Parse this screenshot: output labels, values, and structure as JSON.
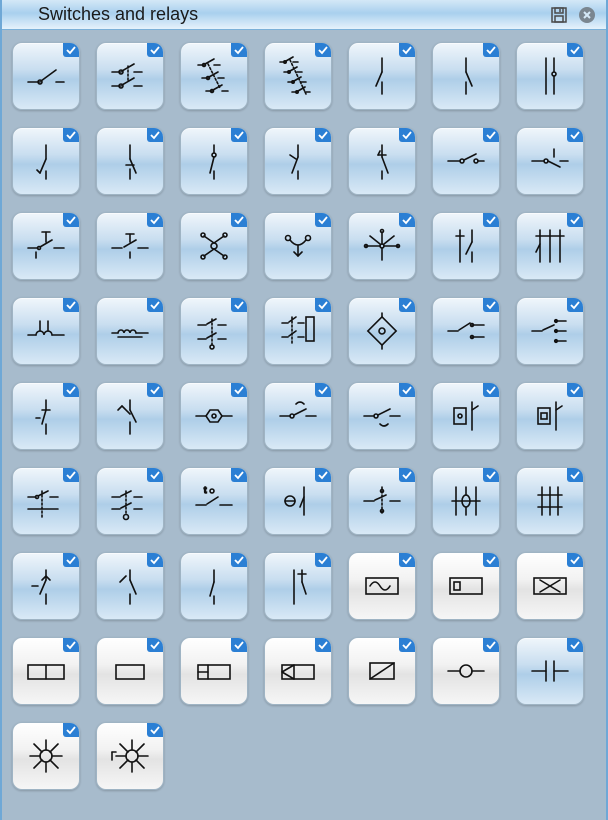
{
  "panel": {
    "title": "Switches and relays"
  },
  "tiles": [
    {
      "name": "spst-switch",
      "style": "blue",
      "corner": true,
      "glyph": "spst"
    },
    {
      "name": "dpst-switch",
      "style": "blue",
      "corner": true,
      "glyph": "dpst"
    },
    {
      "name": "tpst-switch",
      "style": "blue",
      "corner": true,
      "glyph": "tpst"
    },
    {
      "name": "qpst-switch",
      "style": "blue",
      "corner": true,
      "glyph": "qpst"
    },
    {
      "name": "make-contact-1",
      "style": "blue",
      "corner": true,
      "glyph": "make1"
    },
    {
      "name": "make-contact-2",
      "style": "blue",
      "corner": true,
      "glyph": "make2"
    },
    {
      "name": "break-contact",
      "style": "blue",
      "corner": true,
      "glyph": "break1"
    },
    {
      "name": "contact-no",
      "style": "blue",
      "corner": true,
      "glyph": "cno"
    },
    {
      "name": "contact-nc",
      "style": "blue",
      "corner": true,
      "glyph": "cnc"
    },
    {
      "name": "contact-co",
      "style": "blue",
      "corner": true,
      "glyph": "cco"
    },
    {
      "name": "contact-transfer",
      "style": "blue",
      "corner": true,
      "glyph": "ctrans"
    },
    {
      "name": "contact-early",
      "style": "blue",
      "corner": true,
      "glyph": "cearly"
    },
    {
      "name": "switch-horizontal-1",
      "style": "blue",
      "corner": true,
      "glyph": "hsw1"
    },
    {
      "name": "switch-horizontal-2",
      "style": "blue",
      "corner": true,
      "glyph": "hsw2"
    },
    {
      "name": "pushbutton-1",
      "style": "blue",
      "corner": true,
      "glyph": "pb1"
    },
    {
      "name": "pushbutton-2",
      "style": "blue",
      "corner": true,
      "glyph": "pb2"
    },
    {
      "name": "rotary-switch",
      "style": "blue",
      "corner": true,
      "glyph": "rotary"
    },
    {
      "name": "changeover-switch",
      "style": "blue",
      "corner": true,
      "glyph": "changeover"
    },
    {
      "name": "multiposition-switch",
      "style": "blue",
      "corner": true,
      "glyph": "multipos"
    },
    {
      "name": "limit-switch",
      "style": "blue",
      "corner": true,
      "glyph": "limit"
    },
    {
      "name": "interlock-switch",
      "style": "blue",
      "corner": true,
      "glyph": "interlock"
    },
    {
      "name": "relay-coil-1",
      "style": "blue",
      "corner": true,
      "glyph": "coil1"
    },
    {
      "name": "relay-coil-2",
      "style": "blue",
      "corner": true,
      "glyph": "coil2"
    },
    {
      "name": "relay-contact-set",
      "style": "blue",
      "corner": true,
      "glyph": "rcset"
    },
    {
      "name": "relay-dpdt",
      "style": "blue",
      "corner": true,
      "glyph": "dpdt"
    },
    {
      "name": "relay-polarized",
      "style": "blue",
      "corner": true,
      "glyph": "polarized"
    },
    {
      "name": "switch-2way-h",
      "style": "blue",
      "corner": true,
      "glyph": "sw2h"
    },
    {
      "name": "switch-3way-h",
      "style": "blue",
      "corner": true,
      "glyph": "sw3h"
    },
    {
      "name": "thermal-switch-1",
      "style": "blue",
      "corner": true,
      "glyph": "therm1"
    },
    {
      "name": "thermal-switch-2",
      "style": "blue",
      "corner": true,
      "glyph": "therm2"
    },
    {
      "name": "delay-switch-1",
      "style": "blue",
      "corner": true,
      "glyph": "delay1"
    },
    {
      "name": "delay-switch-2",
      "style": "blue",
      "corner": true,
      "glyph": "delay2"
    },
    {
      "name": "delay-switch-3",
      "style": "blue",
      "corner": true,
      "glyph": "delay3"
    },
    {
      "name": "relay-box-1",
      "style": "blue",
      "corner": true,
      "glyph": "rbox1"
    },
    {
      "name": "relay-box-2",
      "style": "blue",
      "corner": true,
      "glyph": "rbox2"
    },
    {
      "name": "switch-assembly-1",
      "style": "blue",
      "corner": true,
      "glyph": "asm1"
    },
    {
      "name": "switch-assembly-2",
      "style": "blue",
      "corner": true,
      "glyph": "asm2"
    },
    {
      "name": "time-delay-switch",
      "style": "blue",
      "corner": true,
      "glyph": "tdelay"
    },
    {
      "name": "theta-switch",
      "style": "blue",
      "corner": true,
      "glyph": "theta"
    },
    {
      "name": "switch-assembly-3",
      "style": "blue",
      "corner": true,
      "glyph": "asm3"
    },
    {
      "name": "switch-cross-1",
      "style": "blue",
      "corner": true,
      "glyph": "cross1"
    },
    {
      "name": "switch-cross-2",
      "style": "blue",
      "corner": true,
      "glyph": "cross2"
    },
    {
      "name": "contactor-1",
      "style": "blue",
      "corner": true,
      "glyph": "cont1"
    },
    {
      "name": "contactor-2",
      "style": "blue",
      "corner": true,
      "glyph": "cont2"
    },
    {
      "name": "contactor-3",
      "style": "blue",
      "corner": true,
      "glyph": "cont3"
    },
    {
      "name": "contactor-4",
      "style": "blue",
      "corner": true,
      "glyph": "cont4"
    },
    {
      "name": "ac-relay",
      "style": "white",
      "corner": true,
      "glyph": "acrelay"
    },
    {
      "name": "slow-release-relay",
      "style": "white",
      "corner": true,
      "glyph": "slowrel"
    },
    {
      "name": "latching-relay",
      "style": "white",
      "corner": true,
      "glyph": "latch"
    },
    {
      "name": "relay-2cell",
      "style": "white",
      "corner": true,
      "glyph": "cell2"
    },
    {
      "name": "relay-rect",
      "style": "white",
      "corner": true,
      "glyph": "rect"
    },
    {
      "name": "relay-split",
      "style": "white",
      "corner": true,
      "glyph": "split"
    },
    {
      "name": "relay-triangle",
      "style": "white",
      "corner": true,
      "glyph": "tri"
    },
    {
      "name": "relay-diag",
      "style": "white",
      "corner": true,
      "glyph": "diag"
    },
    {
      "name": "node-circle",
      "style": "white",
      "corner": true,
      "glyph": "node"
    },
    {
      "name": "capacitor-symbol",
      "style": "blue",
      "corner": true,
      "glyph": "cap"
    },
    {
      "name": "lamp-1",
      "style": "white",
      "corner": true,
      "glyph": "lamp1"
    },
    {
      "name": "lamp-2",
      "style": "white",
      "corner": true,
      "glyph": "lamp2"
    }
  ],
  "colors": {
    "stroke": "#111111",
    "corner_bg": "#2b7fd4",
    "corner_check": "#ffffff"
  }
}
